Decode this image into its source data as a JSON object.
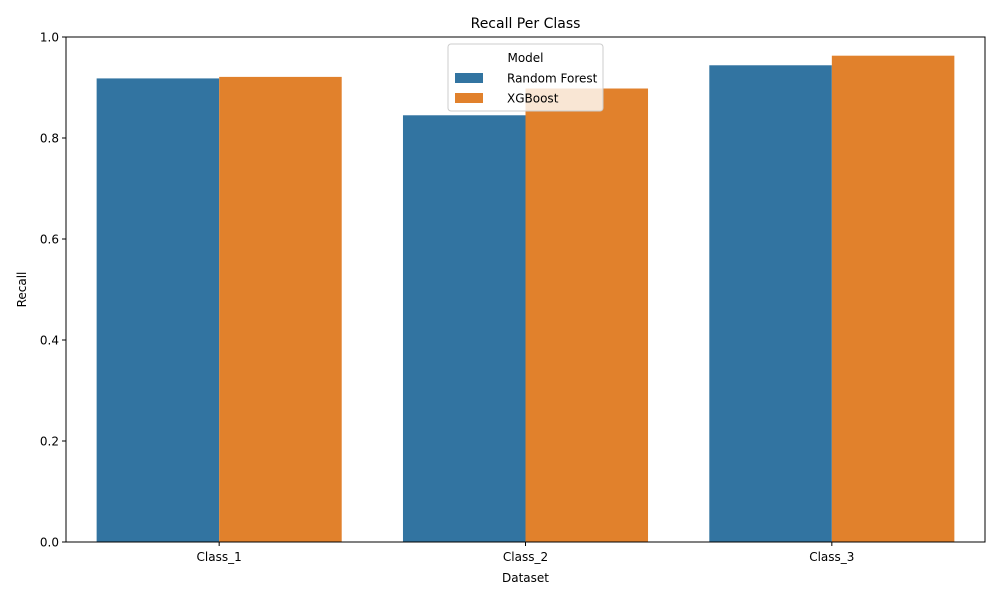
{
  "chart_data": {
    "type": "bar",
    "title": "Recall Per Class",
    "xlabel": "Dataset",
    "ylabel": "Recall",
    "categories": [
      "Class_1",
      "Class_2",
      "Class_3"
    ],
    "series": [
      {
        "name": "Random Forest",
        "color": "#3274a1",
        "values": [
          0.918,
          0.845,
          0.944
        ]
      },
      {
        "name": "XGBoost",
        "color": "#e1812c",
        "values": [
          0.921,
          0.898,
          0.963
        ]
      }
    ],
    "ylim": [
      0,
      1
    ],
    "yticks": [
      0.0,
      0.2,
      0.4,
      0.6,
      0.8,
      1.0
    ],
    "ytick_labels": [
      "0.0",
      "0.2",
      "0.4",
      "0.6",
      "0.8",
      "1.0"
    ],
    "grid": false,
    "legend": {
      "title": "Model",
      "placement": "top-center"
    }
  }
}
